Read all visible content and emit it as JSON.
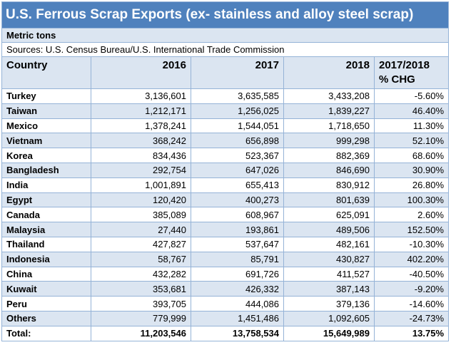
{
  "header": {
    "title": "U.S. Ferrous Scrap Exports (ex- stainless and alloy steel scrap)",
    "unit": "Metric tons",
    "source": "Sources: U.S. Census Bureau/U.S. International Trade Commission"
  },
  "table": {
    "columns": [
      "Country",
      "2016",
      "2017",
      "2018",
      "2017/2018\n% CHG"
    ],
    "rows": [
      [
        "Turkey",
        "3,136,601",
        "3,635,585",
        "3,433,208",
        "-5.60%"
      ],
      [
        "Taiwan",
        "1,212,171",
        "1,256,025",
        "1,839,227",
        "46.40%"
      ],
      [
        "Mexico",
        "1,378,241",
        "1,544,051",
        "1,718,650",
        "11.30%"
      ],
      [
        "Vietnam",
        "368,242",
        "656,898",
        "999,298",
        "52.10%"
      ],
      [
        "Korea",
        "834,436",
        "523,367",
        "882,369",
        "68.60%"
      ],
      [
        "Bangladesh",
        "292,754",
        "647,026",
        "846,690",
        "30.90%"
      ],
      [
        "India",
        "1,001,891",
        "655,413",
        "830,912",
        "26.80%"
      ],
      [
        "Egypt",
        "120,420",
        "400,273",
        "801,639",
        "100.30%"
      ],
      [
        "Canada",
        "385,089",
        "608,967",
        "625,091",
        "2.60%"
      ],
      [
        "Malaysia",
        "27,440",
        "193,861",
        "489,506",
        "152.50%"
      ],
      [
        "Thailand",
        "427,827",
        "537,647",
        "482,161",
        "-10.30%"
      ],
      [
        "Indonesia",
        "58,767",
        "85,791",
        "430,827",
        "402.20%"
      ],
      [
        "China",
        "432,282",
        "691,726",
        "411,527",
        "-40.50%"
      ],
      [
        "Kuwait",
        "353,681",
        "426,332",
        "387,143",
        "-9.20%"
      ],
      [
        "Peru",
        "393,705",
        "444,086",
        "379,136",
        "-14.60%"
      ],
      [
        "Others",
        "779,999",
        "1,451,486",
        "1,092,605",
        "-24.73%"
      ],
      [
        "Total:",
        "11,203,546",
        "13,758,534",
        "15,649,989",
        "13.75%"
      ]
    ]
  }
}
